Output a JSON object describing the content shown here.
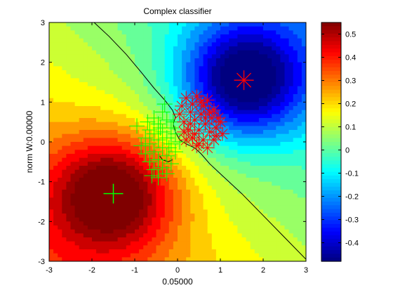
{
  "chart_data": {
    "type": "heatmap",
    "title": "Complex classifier",
    "xlabel": "0.05000",
    "ylabel": "norm W:0.00000",
    "xlim": [
      -3,
      3
    ],
    "ylim": [
      -3,
      3
    ],
    "xticks": [
      "-3",
      "-2",
      "-1",
      "0",
      "1",
      "2",
      "3"
    ],
    "yticks": [
      "-3",
      "-2",
      "-1",
      "0",
      "1",
      "2",
      "3"
    ],
    "colorbar": {
      "range": [
        -0.48,
        0.55
      ],
      "ticks": [
        "0.5",
        "0.4",
        "0.3",
        "0.2",
        "0.1",
        "0",
        "-0.1",
        "-0.2",
        "-0.3",
        "-0.4"
      ],
      "colormap": "jet"
    },
    "centers": [
      {
        "x": -1.5,
        "y": -1.3,
        "marker": "plus",
        "color": "#00ff00"
      },
      {
        "x": 1.55,
        "y": 1.55,
        "marker": "star",
        "color": "#ff0000"
      }
    ],
    "series": [
      {
        "marker": "plus",
        "color": "#00ff00",
        "points": [
          [
            -0.55,
            0.6
          ],
          [
            -0.35,
            0.75
          ],
          [
            -0.65,
            0.3
          ],
          [
            -0.45,
            0.45
          ],
          [
            -0.25,
            0.55
          ],
          [
            -0.75,
            0.1
          ],
          [
            -0.55,
            0.2
          ],
          [
            -0.35,
            0.25
          ],
          [
            -0.15,
            0.35
          ],
          [
            -0.85,
            -0.1
          ],
          [
            -0.65,
            -0.05
          ],
          [
            -0.45,
            0.05
          ],
          [
            -0.25,
            0.1
          ],
          [
            -0.05,
            0.2
          ],
          [
            -0.75,
            -0.3
          ],
          [
            -0.55,
            -0.25
          ],
          [
            -0.35,
            -0.15
          ],
          [
            -0.15,
            -0.05
          ],
          [
            0.05,
            0.0
          ],
          [
            -0.65,
            -0.5
          ],
          [
            -0.45,
            -0.45
          ],
          [
            -0.25,
            -0.35
          ],
          [
            -0.05,
            -0.25
          ],
          [
            -0.55,
            -0.7
          ],
          [
            -0.35,
            -0.65
          ],
          [
            -0.15,
            -0.55
          ],
          [
            -0.45,
            -0.9
          ],
          [
            -0.25,
            -0.8
          ],
          [
            -0.95,
            0.4
          ],
          [
            -0.3,
            0.95
          ],
          [
            -0.6,
            -0.85
          ],
          [
            -0.4,
            0.35
          ],
          [
            -0.2,
            -0.15
          ],
          [
            -0.7,
            0.5
          ],
          [
            -0.1,
            0.5
          ]
        ]
      },
      {
        "marker": "star",
        "color": "#ff0000",
        "points": [
          [
            0.2,
            1.1
          ],
          [
            0.45,
            1.15
          ],
          [
            0.7,
            1.05
          ],
          [
            0.1,
            0.9
          ],
          [
            0.35,
            0.95
          ],
          [
            0.6,
            0.9
          ],
          [
            0.85,
            0.8
          ],
          [
            0.05,
            0.7
          ],
          [
            0.3,
            0.75
          ],
          [
            0.55,
            0.7
          ],
          [
            0.8,
            0.6
          ],
          [
            1.0,
            0.5
          ],
          [
            0.15,
            0.5
          ],
          [
            0.4,
            0.55
          ],
          [
            0.65,
            0.45
          ],
          [
            0.9,
            0.35
          ],
          [
            0.25,
            0.3
          ],
          [
            0.5,
            0.3
          ],
          [
            0.75,
            0.25
          ],
          [
            1.05,
            0.2
          ],
          [
            0.35,
            0.1
          ],
          [
            0.6,
            0.05
          ],
          [
            0.85,
            0.05
          ],
          [
            0.45,
            -0.1
          ],
          [
            0.7,
            -0.15
          ],
          [
            0.2,
            0.05
          ],
          [
            0.95,
            0.6
          ],
          [
            0.55,
            1.0
          ],
          [
            0.3,
            0.45
          ],
          [
            0.75,
            0.75
          ],
          [
            0.4,
            0.2
          ],
          [
            0.65,
            0.6
          ],
          [
            0.9,
            0.15
          ],
          [
            0.15,
            0.25
          ],
          [
            0.5,
            -0.05
          ]
        ]
      }
    ],
    "decision_boundary": [
      [
        [
          -1.95,
          3.0
        ],
        [
          -1.6,
          2.65
        ],
        [
          -1.2,
          2.2
        ],
        [
          -0.85,
          1.75
        ],
        [
          -0.55,
          1.35
        ],
        [
          -0.3,
          1.05
        ],
        [
          -0.12,
          0.8
        ],
        [
          -0.05,
          0.62
        ],
        [
          -0.1,
          0.45
        ],
        [
          -0.05,
          0.25
        ],
        [
          0.05,
          0.05
        ],
        [
          0.2,
          -0.05
        ],
        [
          0.4,
          -0.15
        ],
        [
          0.55,
          -0.3
        ],
        [
          0.75,
          -0.55
        ],
        [
          1.05,
          -0.85
        ],
        [
          1.5,
          -1.3
        ],
        [
          2.0,
          -1.85
        ],
        [
          2.5,
          -2.4
        ],
        [
          3.0,
          -2.95
        ]
      ],
      [
        [
          -0.12,
          -0.45
        ],
        [
          -0.22,
          -0.5
        ],
        [
          -0.35,
          -0.45
        ],
        [
          -0.42,
          -0.35
        ]
      ]
    ]
  }
}
